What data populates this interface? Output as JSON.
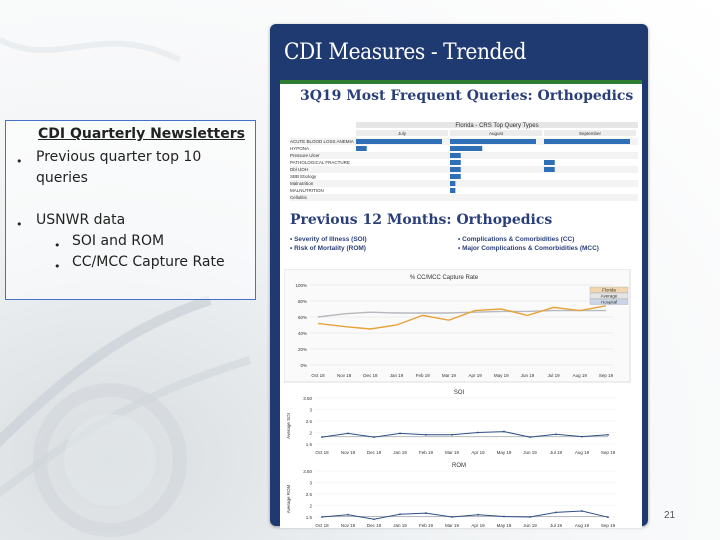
{
  "newsletter": {
    "title": "CDI Quarterly Newsletters",
    "items": [
      {
        "text_line1": "Previous quarter top 10",
        "text_line2": "queries"
      },
      {
        "text_line1": "USNWR data",
        "subitems": [
          "SOI and ROM",
          "CC/MCC Capture Rate"
        ]
      }
    ]
  },
  "card": {
    "title": "CDI Measures - Trended",
    "section1_title": "3Q19 Most Frequent Queries: Orthopedics",
    "section2_title": "Previous 12 Months: Orthopedics",
    "legend_left": [
      "Severity of Illness (SOI)",
      "Risk of Mortality (ROM)"
    ],
    "legend_right": [
      "Complications & Comorbidities (CC)",
      "Major Complications & Comorbidities (MCC)"
    ]
  },
  "chart_data": [
    {
      "type": "bar",
      "title": "Florida - CRS Top Query Types",
      "panels": [
        "July",
        "August",
        "September"
      ],
      "xticks": [
        0,
        2,
        4,
        6,
        8
      ],
      "categories": [
        "ACUTE BLOOD LOSS ANEMIA",
        "HYPONA",
        "Pressure Ulcer",
        "PATHOLOGICAL FRACTURE",
        "Dbl UOH",
        "SBB Etiology",
        "Malnutrition",
        "MALNUTRITION",
        "Cellulitis"
      ],
      "series": [
        {
          "name": "July",
          "values": [
            8,
            1,
            0,
            0,
            0,
            0,
            0,
            0,
            0
          ]
        },
        {
          "name": "August",
          "values": [
            8,
            3,
            1,
            1,
            1,
            1,
            0.5,
            0.5,
            0
          ]
        },
        {
          "name": "September",
          "values": [
            8,
            0,
            0,
            1,
            1,
            0,
            0,
            0,
            0
          ]
        }
      ]
    },
    {
      "type": "line",
      "title": "% CC/MCC Capture Rate",
      "x": [
        "Oct 18",
        "Nov 18",
        "Dec 18",
        "Jan 19",
        "Feb 19",
        "Mar 19",
        "Apr 19",
        "May 19",
        "Jun 19",
        "Jul 19",
        "Aug 19",
        "Sep 19"
      ],
      "yticks": [
        "100%",
        "80%",
        "60%",
        "40%",
        "20%",
        "0%"
      ],
      "ylim": [
        0,
        100
      ],
      "legend": [
        "Florida",
        "Average",
        "Hospital"
      ],
      "series": [
        {
          "name": "Average",
          "values": [
            60,
            64,
            66,
            65,
            65,
            65,
            66,
            67,
            67,
            68,
            68,
            68
          ]
        },
        {
          "name": "Florida",
          "values": [
            52,
            48,
            45,
            50,
            62,
            56,
            68,
            70,
            62,
            72,
            68,
            74
          ]
        }
      ]
    },
    {
      "type": "line",
      "title": "SOI",
      "ylabel": "Average SOI",
      "x": [
        "Oct 18",
        "Nov 18",
        "Dec 18",
        "Jan 19",
        "Feb 19",
        "Mar 19",
        "Apr 19",
        "May 19",
        "Jun 19",
        "Jul 19",
        "Aug 19",
        "Sep 19"
      ],
      "yticks": [
        "3.50",
        "3",
        "2.5",
        "2",
        "1.5"
      ],
      "series": [
        {
          "name": "Average",
          "values": [
            1.82,
            1.82,
            1.82,
            1.82,
            1.82,
            1.82,
            1.82,
            1.82,
            1.82,
            1.82,
            1.82,
            1.82
          ]
        },
        {
          "name": "Hospital",
          "values": [
            1.8,
            1.96,
            1.8,
            1.96,
            1.9,
            1.9,
            2.0,
            2.04,
            1.8,
            1.92,
            1.82,
            1.9
          ]
        }
      ]
    },
    {
      "type": "line",
      "title": "ROM",
      "ylabel": "Average ROM",
      "x": [
        "Oct 18",
        "Nov 18",
        "Dec 18",
        "Jan 19",
        "Feb 19",
        "Mar 19",
        "Apr 19",
        "May 19",
        "Jun 19",
        "Jul 19",
        "Aug 19",
        "Sep 19"
      ],
      "yticks": [
        "3.50",
        "3",
        "2.5",
        "2",
        "1.5"
      ],
      "series": [
        {
          "name": "Average",
          "values": [
            1.52,
            1.52,
            1.52,
            1.52,
            1.52,
            1.52,
            1.52,
            1.52,
            1.52,
            1.52,
            1.52,
            1.52
          ]
        },
        {
          "name": "Hospital",
          "values": [
            1.5,
            1.6,
            1.4,
            1.62,
            1.67,
            1.5,
            1.6,
            1.52,
            1.5,
            1.7,
            1.76,
            1.49
          ]
        }
      ]
    }
  ],
  "page_number": "21"
}
